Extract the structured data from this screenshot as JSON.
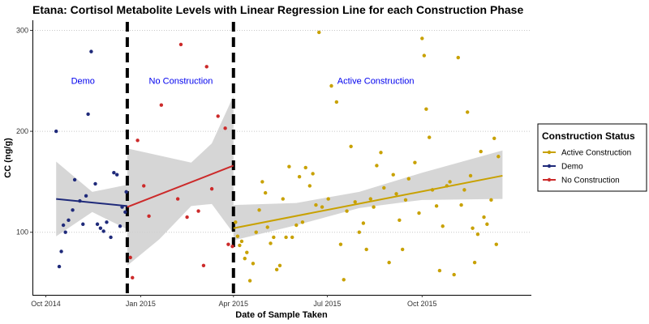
{
  "chart_data": {
    "type": "scatter",
    "title": "Etana: Cortisol Metabolite Levels with Linear Regression Line for each Construction Phase",
    "xlabel": "Date of Sample Taken",
    "ylabel": "CC (ng/g)",
    "xlim": [
      "2014-09-18",
      "2016-01-15"
    ],
    "ylim": [
      38,
      310
    ],
    "y_ticks": [
      100,
      200,
      300
    ],
    "x_ticks": [
      {
        "date": "2014-10-01",
        "label": "Oct 2014"
      },
      {
        "date": "2015-01-01",
        "label": "Jan 2015"
      },
      {
        "date": "2015-04-01",
        "label": "Apr 2015"
      },
      {
        "date": "2015-07-01",
        "label": "Jul 2015"
      },
      {
        "date": "2015-10-01",
        "label": "Oct 2015"
      }
    ],
    "grid": "horizontal dotted",
    "phase_boundaries": [
      "2014-12-19",
      "2015-04-01"
    ],
    "phase_labels": [
      {
        "text": "Demo",
        "date": "2014-11-06",
        "y": 247
      },
      {
        "text": "No Construction",
        "date": "2015-02-09",
        "y": 247
      },
      {
        "text": "Active Construction",
        "date": "2015-08-17",
        "y": 247
      }
    ],
    "legend": {
      "title": "Construction Status",
      "position": "right",
      "entries": [
        "Active Construction",
        "Demo",
        "No Construction"
      ]
    },
    "series": [
      {
        "name": "Demo",
        "color": "#1f2a7a",
        "points": [
          [
            "2014-10-11",
            200
          ],
          [
            "2014-10-14",
            66
          ],
          [
            "2014-10-16",
            81
          ],
          [
            "2014-10-18",
            107
          ],
          [
            "2014-10-20",
            100
          ],
          [
            "2014-10-23",
            112
          ],
          [
            "2014-10-27",
            122
          ],
          [
            "2014-10-29",
            152
          ],
          [
            "2014-11-03",
            131
          ],
          [
            "2014-11-06",
            108
          ],
          [
            "2014-11-09",
            136
          ],
          [
            "2014-11-11",
            217
          ],
          [
            "2014-11-14",
            279
          ],
          [
            "2014-11-18",
            148
          ],
          [
            "2014-11-20",
            108
          ],
          [
            "2014-11-23",
            104
          ],
          [
            "2014-11-26",
            101
          ],
          [
            "2014-11-29",
            110
          ],
          [
            "2014-12-03",
            95
          ],
          [
            "2014-12-06",
            159
          ],
          [
            "2014-12-09",
            157
          ],
          [
            "2014-12-12",
            106
          ],
          [
            "2014-12-14",
            125
          ],
          [
            "2014-12-17",
            120
          ],
          [
            "2014-12-18",
            140
          ]
        ],
        "regression": {
          "start": [
            "2014-10-11",
            133
          ],
          "end": [
            "2014-12-19",
            126
          ]
        },
        "ci_band": [
          [
            "2014-10-11",
            96,
            170
          ],
          [
            "2014-11-15",
            120,
            140
          ],
          [
            "2014-12-19",
            103,
            147
          ]
        ]
      },
      {
        "name": "No Construction",
        "color": "#cc2a2a",
        "points": [
          [
            "2014-12-22",
            75
          ],
          [
            "2014-12-24",
            55
          ],
          [
            "2014-12-29",
            191
          ],
          [
            "2015-01-04",
            146
          ],
          [
            "2015-01-09",
            116
          ],
          [
            "2015-01-21",
            226
          ],
          [
            "2015-02-06",
            133
          ],
          [
            "2015-02-09",
            286
          ],
          [
            "2015-02-15",
            115
          ],
          [
            "2015-02-26",
            121
          ],
          [
            "2015-03-03",
            67
          ],
          [
            "2015-03-06",
            264
          ],
          [
            "2015-03-11",
            143
          ],
          [
            "2015-03-17",
            215
          ],
          [
            "2015-03-24",
            203
          ],
          [
            "2015-03-27",
            88
          ],
          [
            "2015-03-31",
            86
          ]
        ],
        "regression": {
          "start": [
            "2014-12-19",
            125
          ],
          "end": [
            "2015-04-01",
            166
          ]
        },
        "ci_band": [
          [
            "2014-12-19",
            67,
            183
          ],
          [
            "2015-01-19",
            93,
            176
          ],
          [
            "2015-02-19",
            126,
            169
          ],
          [
            "2015-03-11",
            128,
            188
          ],
          [
            "2015-04-01",
            99,
            235
          ]
        ]
      },
      {
        "name": "Active Construction",
        "color": "#c8a100",
        "points": [
          [
            "2015-04-03",
            110
          ],
          [
            "2015-04-05",
            96
          ],
          [
            "2015-04-07",
            87
          ],
          [
            "2015-04-09",
            91
          ],
          [
            "2015-04-12",
            74
          ],
          [
            "2015-04-14",
            80
          ],
          [
            "2015-04-17",
            52
          ],
          [
            "2015-04-20",
            69
          ],
          [
            "2015-04-23",
            100
          ],
          [
            "2015-04-26",
            122
          ],
          [
            "2015-04-29",
            150
          ],
          [
            "2015-05-02",
            139
          ],
          [
            "2015-05-04",
            105
          ],
          [
            "2015-05-07",
            89
          ],
          [
            "2015-05-10",
            95
          ],
          [
            "2015-05-13",
            63
          ],
          [
            "2015-05-16",
            67
          ],
          [
            "2015-05-19",
            133
          ],
          [
            "2015-05-22",
            95
          ],
          [
            "2015-05-25",
            165
          ],
          [
            "2015-05-28",
            95
          ],
          [
            "2015-06-01",
            107
          ],
          [
            "2015-06-04",
            155
          ],
          [
            "2015-06-07",
            110
          ],
          [
            "2015-06-10",
            164
          ],
          [
            "2015-06-14",
            146
          ],
          [
            "2015-06-17",
            158
          ],
          [
            "2015-06-20",
            127
          ],
          [
            "2015-06-23",
            298
          ],
          [
            "2015-06-26",
            125
          ],
          [
            "2015-07-02",
            133
          ],
          [
            "2015-07-05",
            245
          ],
          [
            "2015-07-10",
            229
          ],
          [
            "2015-07-14",
            88
          ],
          [
            "2015-07-17",
            53
          ],
          [
            "2015-07-20",
            121
          ],
          [
            "2015-07-24",
            185
          ],
          [
            "2015-07-28",
            130
          ],
          [
            "2015-08-01",
            100
          ],
          [
            "2015-08-05",
            109
          ],
          [
            "2015-08-08",
            83
          ],
          [
            "2015-08-12",
            133
          ],
          [
            "2015-08-15",
            125
          ],
          [
            "2015-08-18",
            166
          ],
          [
            "2015-08-22",
            179
          ],
          [
            "2015-08-25",
            144
          ],
          [
            "2015-08-30",
            70
          ],
          [
            "2015-09-03",
            157
          ],
          [
            "2015-09-06",
            138
          ],
          [
            "2015-09-09",
            112
          ],
          [
            "2015-09-12",
            83
          ],
          [
            "2015-09-15",
            132
          ],
          [
            "2015-09-18",
            153
          ],
          [
            "2015-09-24",
            169
          ],
          [
            "2015-09-28",
            119
          ],
          [
            "2015-10-01",
            292
          ],
          [
            "2015-10-03",
            275
          ],
          [
            "2015-10-05",
            222
          ],
          [
            "2015-10-08",
            194
          ],
          [
            "2015-10-11",
            142
          ],
          [
            "2015-10-15",
            126
          ],
          [
            "2015-10-18",
            62
          ],
          [
            "2015-10-21",
            106
          ],
          [
            "2015-10-25",
            146
          ],
          [
            "2015-10-28",
            150
          ],
          [
            "2015-11-01",
            58
          ],
          [
            "2015-11-05",
            273
          ],
          [
            "2015-11-08",
            127
          ],
          [
            "2015-11-11",
            142
          ],
          [
            "2015-11-14",
            219
          ],
          [
            "2015-11-17",
            156
          ],
          [
            "2015-11-19",
            104
          ],
          [
            "2015-11-21",
            70
          ],
          [
            "2015-11-24",
            98
          ],
          [
            "2015-11-27",
            180
          ],
          [
            "2015-11-30",
            115
          ],
          [
            "2015-12-03",
            108
          ],
          [
            "2015-12-07",
            132
          ],
          [
            "2015-12-10",
            193
          ],
          [
            "2015-12-12",
            88
          ],
          [
            "2015-12-14",
            175
          ]
        ],
        "regression": {
          "start": [
            "2015-04-01",
            104
          ],
          "end": [
            "2015-12-18",
            156
          ]
        },
        "ci_band": [
          [
            "2015-04-01",
            92,
            127
          ],
          [
            "2015-06-01",
            107,
            129
          ],
          [
            "2015-08-01",
            124,
            140
          ],
          [
            "2015-10-01",
            132,
            159
          ],
          [
            "2015-12-18",
            133,
            181
          ]
        ]
      }
    ]
  }
}
